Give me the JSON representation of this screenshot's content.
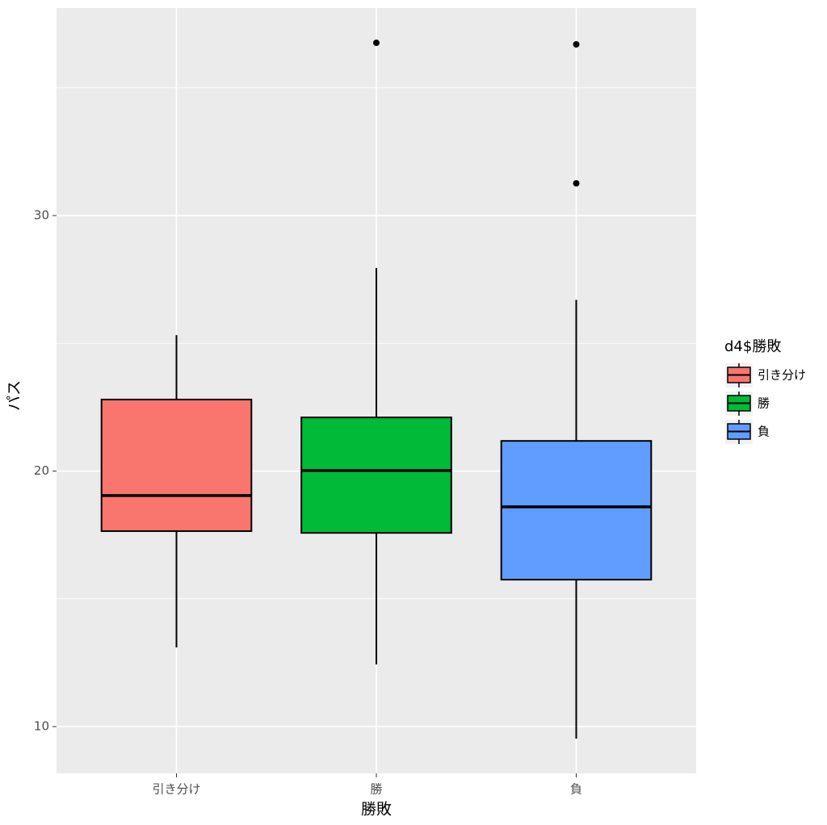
{
  "chart_data": {
    "type": "boxplot",
    "x_label": "勝敗",
    "y_label": "パス",
    "legend_title": "d4$勝敗",
    "categories": [
      "引き分け",
      "勝",
      "負"
    ],
    "colors": [
      "#F8766D",
      "#00BA38",
      "#619CFF"
    ],
    "whisker_low": [
      13.1,
      12.43,
      9.53
    ],
    "q1": [
      17.65,
      17.58,
      15.75
    ],
    "median": [
      19.04,
      20.02,
      18.6
    ],
    "q3": [
      22.8,
      22.1,
      21.18
    ],
    "whisker_high": [
      25.32,
      27.95,
      26.7
    ],
    "outliers": [
      [],
      [
        36.76
      ],
      [
        36.7,
        31.26
      ]
    ],
    "ylim": [
      8.17,
      38.12
    ],
    "yticks": [
      10,
      20,
      30
    ],
    "minor_yticks": [
      15,
      25,
      35
    ],
    "grid": true,
    "legend_position": "right"
  }
}
